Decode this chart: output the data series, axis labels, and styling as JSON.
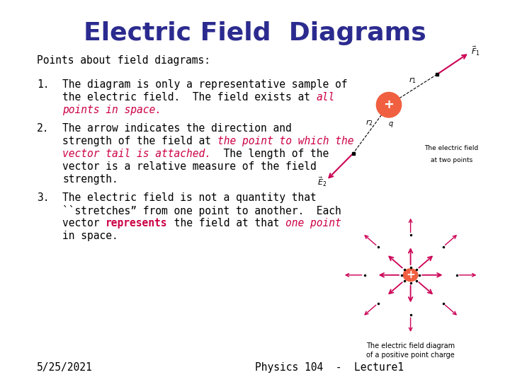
{
  "title": "Electric Field  Diagrams",
  "title_color": "#2b2b8f",
  "title_fontsize": 26,
  "bg_color": "#ffffff",
  "header": "Points about field diagrams:",
  "body_fontsize": 10.5,
  "body_color": "#000000",
  "red_color": "#cc0044",
  "footer_left": "5/25/2021",
  "footer_center": "Physics 104  -  Lecture1",
  "footer_fontsize": 10.5,
  "arrow_color": "#cc0055",
  "charge_color": "#f06040",
  "dot_color": "#111111"
}
